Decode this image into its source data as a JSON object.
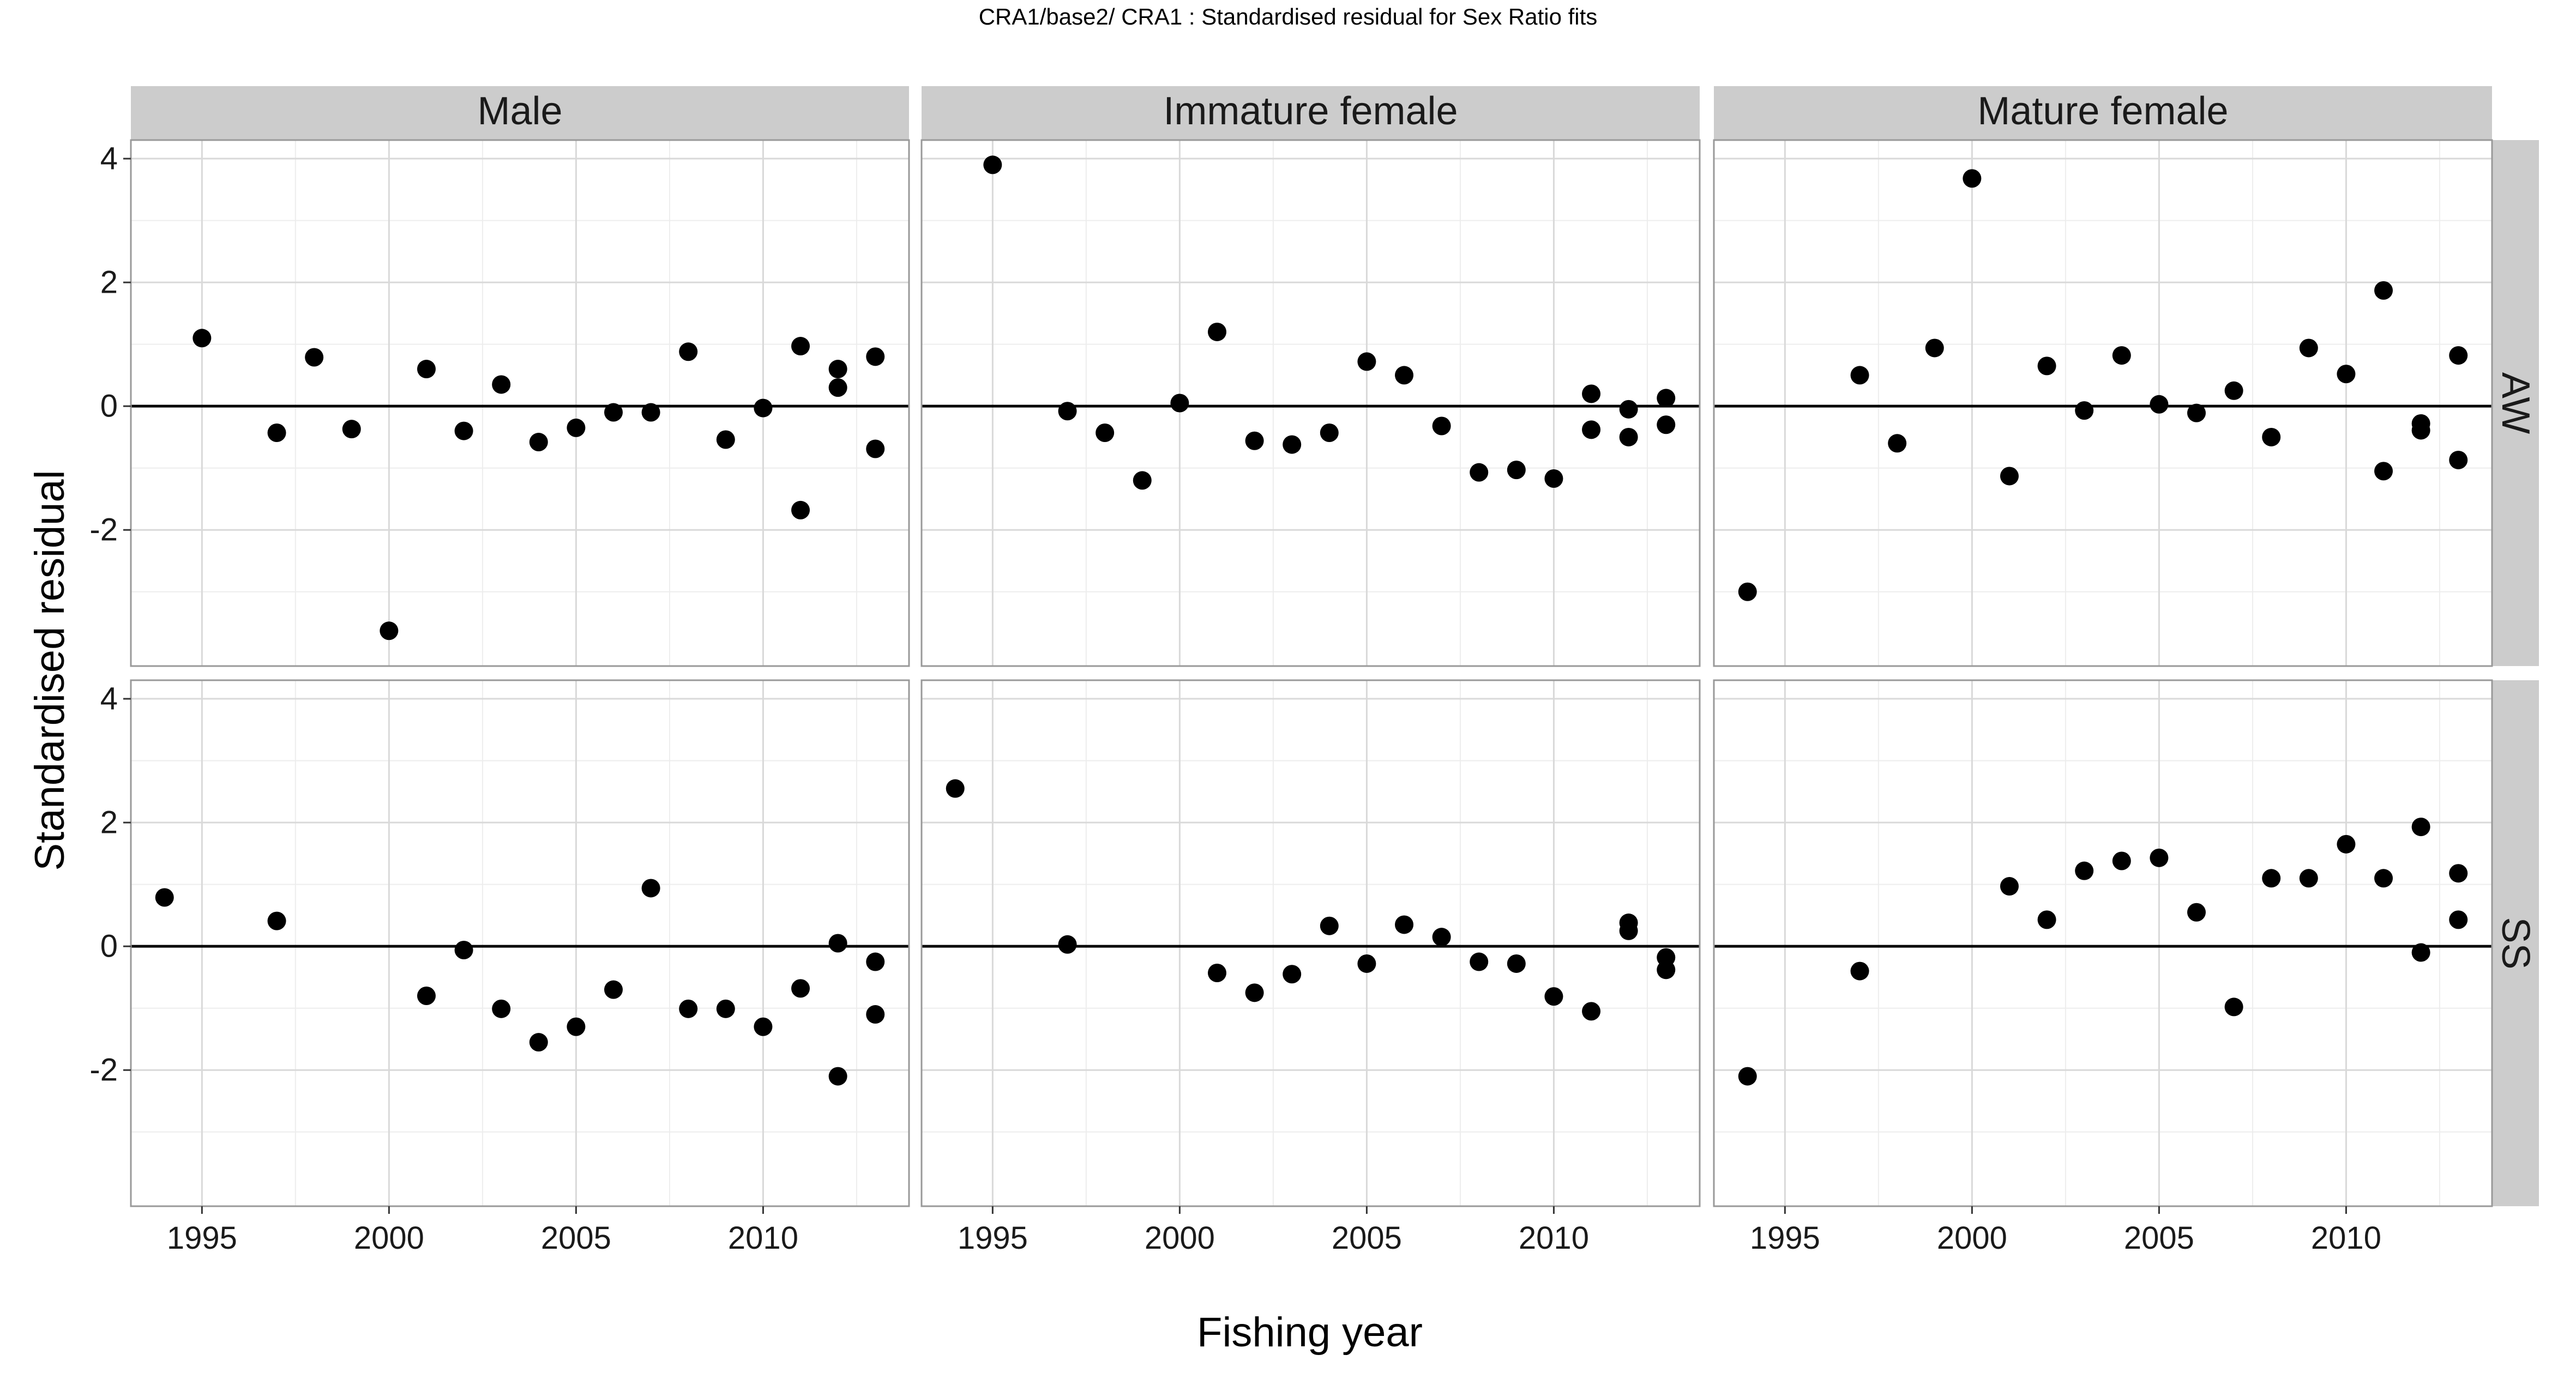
{
  "chart_data": {
    "type": "scatter",
    "title": "CRA1/base2/   CRA1 : Standardised residual for Sex Ratio fits",
    "xlabel": "Fishing year",
    "ylabel": "Standardised residual",
    "xlim": [
      1993.1,
      2013.9
    ],
    "ylim": [
      -4.2,
      4.3
    ],
    "x_ticks": [
      1995,
      2000,
      2005,
      2010
    ],
    "x_tick_labels": [
      "1995",
      "2000",
      "2005",
      "2010"
    ],
    "y_ticks": [
      -2,
      0,
      2,
      4
    ],
    "y_tick_labels": [
      "-2",
      "0",
      "2",
      "4"
    ],
    "reference_line": 0,
    "columns": [
      "Male",
      "Immature female",
      "Mature female"
    ],
    "rows": [
      "AW",
      "SS"
    ],
    "colors": {
      "point": "#000000",
      "strip_fill": "#cccccc",
      "panel_border": "#999999",
      "grid_major": "#d9d9d9",
      "grid_minor": "#ededed",
      "zero_line": "#000000"
    },
    "panels": [
      {
        "row": "AW",
        "col": "Male",
        "points": [
          [
            1995,
            1.1
          ],
          [
            1997,
            -0.43
          ],
          [
            1998,
            0.79
          ],
          [
            1999,
            -0.37
          ],
          [
            2000,
            -3.63
          ],
          [
            2001,
            0.6
          ],
          [
            2002,
            -0.4
          ],
          [
            2003,
            0.35
          ],
          [
            2004,
            -0.58
          ],
          [
            2005,
            -0.35
          ],
          [
            2006,
            -0.1
          ],
          [
            2007,
            -0.1
          ],
          [
            2008,
            0.88
          ],
          [
            2009,
            -0.54
          ],
          [
            2010,
            -0.03
          ],
          [
            2011,
            0.97
          ],
          [
            2011,
            -1.68
          ],
          [
            2012,
            0.6
          ],
          [
            2012,
            0.3
          ],
          [
            2013,
            0.8
          ],
          [
            2013,
            -0.69
          ]
        ]
      },
      {
        "row": "AW",
        "col": "Immature female",
        "points": [
          [
            1995,
            3.9
          ],
          [
            1997,
            -0.08
          ],
          [
            1998,
            -0.43
          ],
          [
            1999,
            -1.2
          ],
          [
            2000,
            0.05
          ],
          [
            2001,
            1.2
          ],
          [
            2002,
            -0.56
          ],
          [
            2003,
            -0.62
          ],
          [
            2004,
            -0.43
          ],
          [
            2005,
            0.72
          ],
          [
            2006,
            0.5
          ],
          [
            2007,
            -0.32
          ],
          [
            2008,
            -1.07
          ],
          [
            2009,
            -1.03
          ],
          [
            2010,
            -1.17
          ],
          [
            2011,
            0.2
          ],
          [
            2011,
            -0.38
          ],
          [
            2012,
            -0.05
          ],
          [
            2012,
            -0.5
          ],
          [
            2013,
            0.13
          ],
          [
            2013,
            -0.3
          ]
        ]
      },
      {
        "row": "AW",
        "col": "Mature female",
        "points": [
          [
            1994,
            -3.0
          ],
          [
            1997,
            0.5
          ],
          [
            1998,
            -0.6
          ],
          [
            1999,
            0.94
          ],
          [
            2000,
            3.68
          ],
          [
            2001,
            -1.13
          ],
          [
            2002,
            0.65
          ],
          [
            2003,
            -0.07
          ],
          [
            2004,
            0.82
          ],
          [
            2005,
            0.03
          ],
          [
            2006,
            -0.11
          ],
          [
            2007,
            0.25
          ],
          [
            2008,
            -0.5
          ],
          [
            2009,
            0.94
          ],
          [
            2010,
            0.52
          ],
          [
            2011,
            1.87
          ],
          [
            2011,
            -1.05
          ],
          [
            2012,
            -0.28
          ],
          [
            2012,
            -0.39
          ],
          [
            2013,
            0.82
          ],
          [
            2013,
            -0.87
          ]
        ]
      },
      {
        "row": "SS",
        "col": "Male",
        "points": [
          [
            1994,
            0.79
          ],
          [
            1997,
            0.41
          ],
          [
            2001,
            -0.8
          ],
          [
            2002,
            -0.06
          ],
          [
            2003,
            -1.01
          ],
          [
            2004,
            -1.55
          ],
          [
            2005,
            -1.3
          ],
          [
            2006,
            -0.7
          ],
          [
            2007,
            0.94
          ],
          [
            2008,
            -1.01
          ],
          [
            2009,
            -1.01
          ],
          [
            2010,
            -1.3
          ],
          [
            2011,
            -0.68
          ],
          [
            2012,
            0.05
          ],
          [
            2012,
            -2.1
          ],
          [
            2013,
            -0.25
          ],
          [
            2013,
            -1.1
          ]
        ]
      },
      {
        "row": "SS",
        "col": "Immature female",
        "points": [
          [
            1994,
            2.55
          ],
          [
            1997,
            0.03
          ],
          [
            2001,
            -0.43
          ],
          [
            2002,
            -0.75
          ],
          [
            2003,
            -0.45
          ],
          [
            2004,
            0.33
          ],
          [
            2005,
            -0.28
          ],
          [
            2006,
            0.35
          ],
          [
            2007,
            0.15
          ],
          [
            2008,
            -0.25
          ],
          [
            2009,
            -0.28
          ],
          [
            2010,
            -0.81
          ],
          [
            2011,
            -1.05
          ],
          [
            2012,
            0.38
          ],
          [
            2012,
            0.25
          ],
          [
            2013,
            -0.18
          ],
          [
            2013,
            -0.38
          ]
        ]
      },
      {
        "row": "SS",
        "col": "Mature female",
        "points": [
          [
            1994,
            -2.1
          ],
          [
            1997,
            -0.4
          ],
          [
            2001,
            0.97
          ],
          [
            2002,
            0.43
          ],
          [
            2003,
            1.22
          ],
          [
            2004,
            1.38
          ],
          [
            2005,
            1.43
          ],
          [
            2006,
            0.55
          ],
          [
            2007,
            -0.98
          ],
          [
            2008,
            1.1
          ],
          [
            2009,
            1.1
          ],
          [
            2010,
            1.65
          ],
          [
            2011,
            1.1
          ],
          [
            2012,
            1.93
          ],
          [
            2012,
            -0.1
          ],
          [
            2013,
            1.18
          ],
          [
            2013,
            0.43
          ]
        ]
      }
    ]
  }
}
